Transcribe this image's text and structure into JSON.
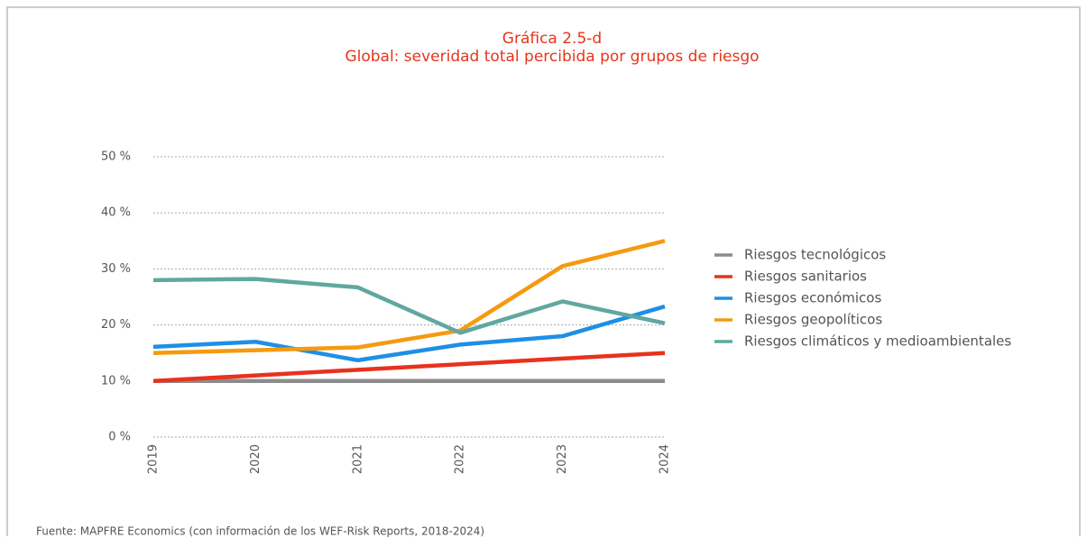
{
  "chart_data": {
    "type": "line",
    "title": "Gráfica 2.5-d",
    "subtitle": "Global: severidad total percibida por grupos de riesgo",
    "categories": [
      "2019",
      "2020",
      "2021",
      "2022",
      "2023",
      "2024"
    ],
    "series": [
      {
        "name": "Riesgos tecnológicos",
        "color": "#8c8c8c",
        "values": [
          10,
          10,
          10,
          10,
          10,
          10
        ]
      },
      {
        "name": "Riesgos sanitarios",
        "color": "#e8321e",
        "values": [
          10,
          11,
          12,
          13,
          14,
          15
        ]
      },
      {
        "name": "Riesgos económicos",
        "color": "#1e8fe6",
        "values": [
          16.1,
          17,
          13.7,
          16.5,
          18,
          23.3
        ]
      },
      {
        "name": "Riesgos geopolíticos",
        "color": "#f59a10",
        "values": [
          15,
          15.5,
          16,
          19,
          30.5,
          35
        ]
      },
      {
        "name": "Riesgos climáticos y medioambientales",
        "color": "#5fa8a0",
        "values": [
          28,
          28.2,
          26.7,
          18.6,
          24.2,
          20.3
        ]
      }
    ],
    "ylim": [
      0,
      50
    ],
    "yticks": [
      {
        "value": 0,
        "label": "0 %"
      },
      {
        "value": 10,
        "label": "10 %"
      },
      {
        "value": 20,
        "label": "20 %"
      },
      {
        "value": 30,
        "label": "30 %"
      },
      {
        "value": 40,
        "label": "40 %"
      },
      {
        "value": 50,
        "label": "50 %"
      }
    ],
    "grid": true,
    "legend": "right",
    "source": "Fuente: MAPFRE Economics (con información de los WEF-Risk Reports, 2018-2024)"
  }
}
